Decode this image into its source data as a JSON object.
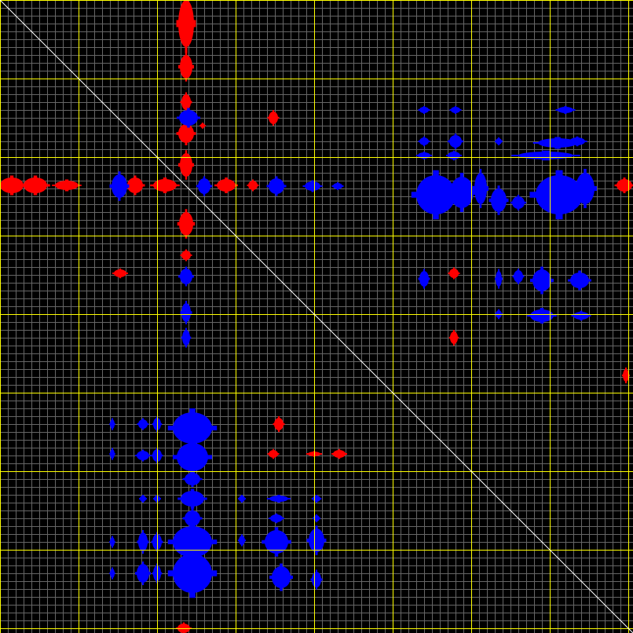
{
  "chart_data": {
    "type": "heatmap",
    "title": "",
    "xlabel": "",
    "ylabel": "",
    "xlim": [
      0,
      8.06
    ],
    "ylim": [
      0,
      8.06
    ],
    "grid": true,
    "minor_grid_step": 0.1,
    "major_grid_step": 1,
    "diagonal": true,
    "colors": {
      "background": "#000000",
      "minor_grid": "#666666",
      "major_grid": "#ffff00",
      "diagonal": "#ffffff",
      "positive": "#ff0000",
      "negative": "#0000ff"
    },
    "peak_format": [
      "x",
      "y",
      "width_x",
      "width_y"
    ],
    "positive_peaks": [
      [
        2.37,
        0.3,
        0.1,
        0.3
      ],
      [
        2.37,
        0.85,
        0.08,
        0.15
      ],
      [
        2.37,
        1.3,
        0.06,
        0.1
      ],
      [
        2.37,
        1.7,
        0.1,
        0.12
      ],
      [
        2.37,
        2.1,
        0.08,
        0.15
      ],
      [
        2.37,
        2.85,
        0.09,
        0.15
      ],
      [
        2.37,
        3.25,
        0.06,
        0.06
      ],
      [
        2.34,
        8.0,
        0.08,
        0.06
      ],
      [
        0.15,
        2.36,
        0.15,
        0.1
      ],
      [
        0.45,
        2.36,
        0.15,
        0.1
      ],
      [
        0.85,
        2.36,
        0.15,
        0.06
      ],
      [
        1.72,
        2.36,
        0.1,
        0.1
      ],
      [
        2.1,
        2.36,
        0.15,
        0.08
      ],
      [
        2.88,
        2.36,
        0.12,
        0.08
      ],
      [
        3.22,
        2.36,
        0.06,
        0.06
      ],
      [
        7.95,
        2.36,
        0.1,
        0.08
      ],
      [
        3.48,
        1.5,
        0.06,
        0.08
      ],
      [
        1.53,
        3.48,
        0.08,
        0.05
      ],
      [
        5.78,
        3.48,
        0.06,
        0.06
      ],
      [
        5.78,
        4.3,
        0.05,
        0.08
      ],
      [
        3.55,
        5.4,
        0.06,
        0.08
      ],
      [
        3.48,
        5.78,
        0.06,
        0.05
      ],
      [
        4.32,
        5.78,
        0.08,
        0.05
      ],
      [
        4.0,
        5.78,
        0.08,
        0.03
      ],
      [
        7.97,
        4.78,
        0.04,
        0.08
      ],
      [
        2.58,
        1.6,
        0.03,
        0.03
      ],
      [
        5.4,
        3.55,
        0.05,
        0.05
      ]
    ],
    "negative_peaks": [
      [
        2.4,
        1.5,
        0.12,
        0.1
      ],
      [
        1.52,
        2.37,
        0.1,
        0.15
      ],
      [
        2.6,
        2.37,
        0.08,
        0.1
      ],
      [
        3.52,
        2.37,
        0.1,
        0.1
      ],
      [
        3.98,
        2.37,
        0.1,
        0.06
      ],
      [
        4.3,
        2.37,
        0.06,
        0.04
      ],
      [
        5.55,
        2.48,
        0.25,
        0.25
      ],
      [
        5.88,
        2.45,
        0.15,
        0.2
      ],
      [
        6.12,
        2.4,
        0.08,
        0.2
      ],
      [
        6.35,
        2.55,
        0.1,
        0.15
      ],
      [
        6.6,
        2.58,
        0.08,
        0.08
      ],
      [
        7.12,
        2.48,
        0.3,
        0.25
      ],
      [
        7.45,
        2.4,
        0.12,
        0.2
      ],
      [
        5.4,
        1.8,
        0.06,
        0.05
      ],
      [
        5.8,
        1.8,
        0.08,
        0.08
      ],
      [
        6.35,
        1.8,
        0.04,
        0.04
      ],
      [
        7.1,
        1.82,
        0.25,
        0.06
      ],
      [
        7.35,
        1.8,
        0.1,
        0.05
      ],
      [
        5.4,
        1.98,
        0.08,
        0.04
      ],
      [
        5.78,
        1.98,
        0.08,
        0.05
      ],
      [
        6.95,
        1.98,
        0.35,
        0.05
      ],
      [
        5.4,
        1.4,
        0.06,
        0.04
      ],
      [
        7.2,
        1.4,
        0.1,
        0.04
      ],
      [
        5.8,
        1.4,
        0.06,
        0.04
      ],
      [
        2.37,
        3.52,
        0.08,
        0.1
      ],
      [
        2.37,
        3.98,
        0.06,
        0.12
      ],
      [
        2.37,
        4.3,
        0.05,
        0.1
      ],
      [
        5.4,
        3.55,
        0.06,
        0.1
      ],
      [
        6.35,
        3.55,
        0.04,
        0.1
      ],
      [
        6.6,
        3.52,
        0.06,
        0.08
      ],
      [
        6.9,
        3.57,
        0.12,
        0.14
      ],
      [
        7.38,
        3.57,
        0.12,
        0.1
      ],
      [
        6.35,
        4.0,
        0.04,
        0.05
      ],
      [
        6.9,
        4.02,
        0.15,
        0.08
      ],
      [
        7.4,
        4.02,
        0.1,
        0.05
      ],
      [
        2.45,
        5.45,
        0.25,
        0.2
      ],
      [
        2.45,
        5.82,
        0.2,
        0.18
      ],
      [
        2.45,
        6.1,
        0.1,
        0.08
      ],
      [
        2.45,
        6.35,
        0.15,
        0.1
      ],
      [
        2.45,
        6.6,
        0.1,
        0.1
      ],
      [
        2.45,
        6.9,
        0.25,
        0.2
      ],
      [
        2.45,
        7.3,
        0.25,
        0.25
      ],
      [
        1.82,
        5.4,
        0.06,
        0.06
      ],
      [
        2.0,
        5.4,
        0.05,
        0.08
      ],
      [
        1.43,
        5.4,
        0.03,
        0.06
      ],
      [
        1.82,
        5.8,
        0.08,
        0.06
      ],
      [
        2.0,
        5.8,
        0.06,
        0.08
      ],
      [
        1.43,
        5.78,
        0.03,
        0.06
      ],
      [
        1.82,
        6.35,
        0.04,
        0.04
      ],
      [
        2.0,
        6.35,
        0.04,
        0.04
      ],
      [
        1.82,
        6.9,
        0.06,
        0.12
      ],
      [
        2.0,
        6.9,
        0.06,
        0.1
      ],
      [
        1.82,
        7.3,
        0.08,
        0.12
      ],
      [
        2.0,
        7.3,
        0.05,
        0.1
      ],
      [
        1.43,
        6.9,
        0.03,
        0.06
      ],
      [
        1.43,
        7.3,
        0.03,
        0.06
      ],
      [
        3.55,
        6.35,
        0.12,
        0.04
      ],
      [
        4.03,
        6.35,
        0.05,
        0.04
      ],
      [
        3.08,
        6.35,
        0.04,
        0.04
      ],
      [
        3.52,
        6.9,
        0.15,
        0.15
      ],
      [
        4.03,
        6.88,
        0.1,
        0.15
      ],
      [
        3.58,
        7.35,
        0.12,
        0.14
      ],
      [
        4.03,
        7.38,
        0.06,
        0.1
      ],
      [
        3.08,
        6.88,
        0.04,
        0.06
      ],
      [
        3.52,
        6.6,
        0.08,
        0.05
      ],
      [
        4.03,
        6.6,
        0.04,
        0.04
      ]
    ]
  }
}
